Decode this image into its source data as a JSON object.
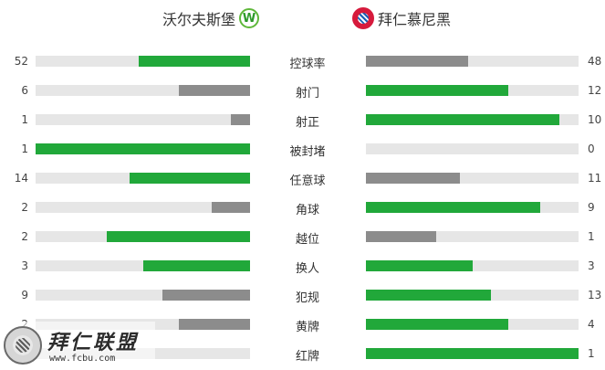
{
  "header": {
    "home_team": "沃尔夫斯堡",
    "home_logo_letter": "W",
    "away_team": "拜仁慕尼黑"
  },
  "colors": {
    "leader": "#21a83a",
    "trailer": "#8c8c8c",
    "track": "#e6e6e6"
  },
  "stats": [
    {
      "label": "控球率",
      "home": 52,
      "away": 48,
      "home_frac": 0.52,
      "away_frac": 0.48
    },
    {
      "label": "射门",
      "home": 6,
      "away": 12,
      "home_frac": 0.33,
      "away_frac": 0.67
    },
    {
      "label": "射正",
      "home": 1,
      "away": 10,
      "home_frac": 0.09,
      "away_frac": 0.91
    },
    {
      "label": "被封堵",
      "home": 1,
      "away": 0,
      "home_frac": 1.0,
      "away_frac": 0.0
    },
    {
      "label": "任意球",
      "home": 14,
      "away": 11,
      "home_frac": 0.56,
      "away_frac": 0.44
    },
    {
      "label": "角球",
      "home": 2,
      "away": 9,
      "home_frac": 0.18,
      "away_frac": 0.82
    },
    {
      "label": "越位",
      "home": 2,
      "away": 1,
      "home_frac": 0.67,
      "away_frac": 0.33
    },
    {
      "label": "换人",
      "home": 3,
      "away": 3,
      "home_frac": 0.5,
      "away_frac": 0.5
    },
    {
      "label": "犯规",
      "home": 9,
      "away": 13,
      "home_frac": 0.41,
      "away_frac": 0.59
    },
    {
      "label": "黄牌",
      "home": 2,
      "away": 4,
      "home_frac": 0.33,
      "away_frac": 0.67
    },
    {
      "label": "红牌",
      "home": 0,
      "away": 1,
      "home_frac": 0.0,
      "away_frac": 1.0
    }
  ],
  "watermark": {
    "title": "拜仁联盟",
    "url": "www.fcbu.com"
  }
}
